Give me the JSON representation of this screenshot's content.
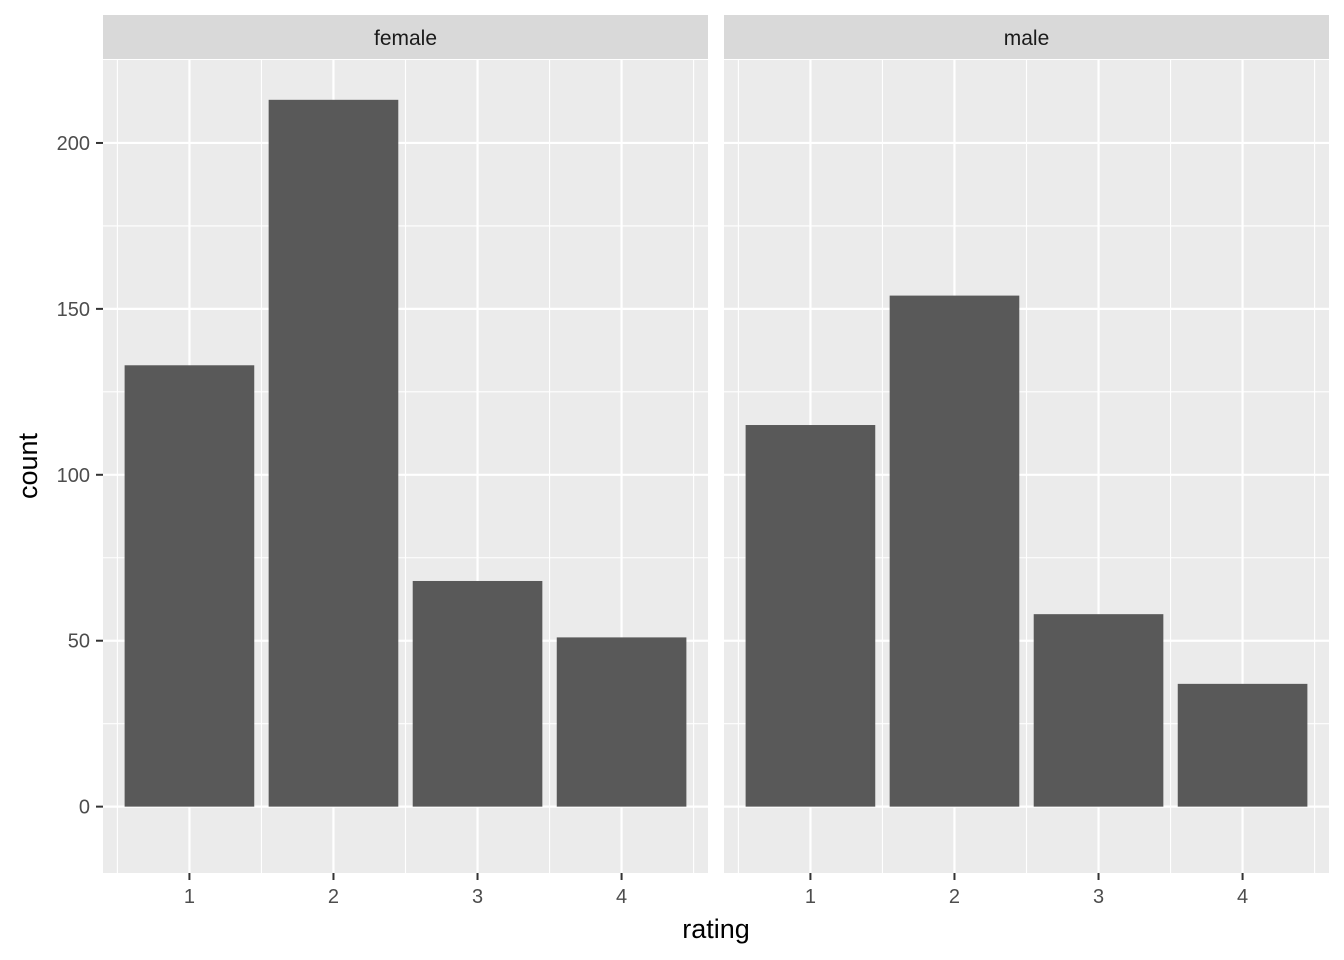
{
  "chart_data": {
    "type": "bar",
    "xlabel": "rating",
    "ylabel": "count",
    "ylim": [
      -20,
      225
    ],
    "y_ticks": [
      0,
      50,
      100,
      150,
      200
    ],
    "categories": [
      "1",
      "2",
      "3",
      "4"
    ],
    "grid": true,
    "facets": [
      {
        "label": "female",
        "values": [
          133,
          213,
          68,
          51
        ]
      },
      {
        "label": "male",
        "values": [
          115,
          154,
          58,
          37
        ]
      }
    ]
  },
  "colors": {
    "panel_background": "#ebebeb",
    "strip_background": "#d9d9d9",
    "bar_fill": "#595959",
    "grid_major": "#ffffff",
    "tick_color": "#333333"
  }
}
